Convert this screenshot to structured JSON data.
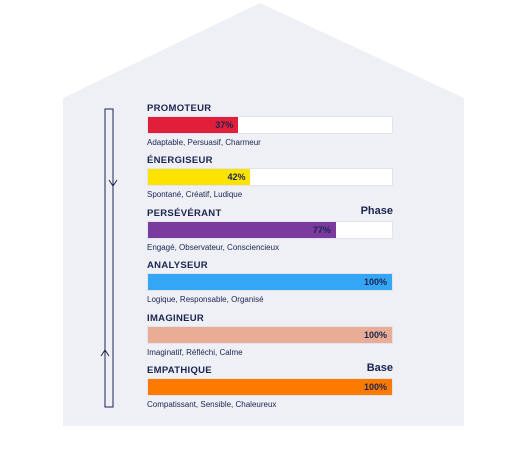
{
  "chart_data": {
    "type": "bar",
    "orientation": "horizontal",
    "xlim": [
      0,
      100
    ],
    "series": [
      {
        "name": "",
        "categories": [
          "PROMOTEUR",
          "ÉNERGISEUR",
          "PERSÉVÉRANT",
          "ANALYSEUR",
          "IMAGINEUR",
          "EMPATHIQUE"
        ],
        "values": [
          37,
          42,
          77,
          100,
          100,
          100
        ]
      }
    ],
    "rows": [
      {
        "name": "PROMOTEUR",
        "value": 37,
        "label": "37%",
        "traits": "Adaptable, Persuasif, Charmeur",
        "color": "#e11f3a",
        "tag": ""
      },
      {
        "name": "ÉNERGISEUR",
        "value": 42,
        "label": "42%",
        "traits": "Spontané, Créatif, Ludique",
        "color": "#fce300",
        "tag": ""
      },
      {
        "name": "PERSÉVÉRANT",
        "value": 77,
        "label": "77%",
        "traits": "Engagé, Observateur, Consciencieux",
        "color": "#7b3a9d",
        "tag": "Phase"
      },
      {
        "name": "ANALYSEUR",
        "value": 100,
        "label": "100%",
        "traits": "Logique, Responsable, Organisé",
        "color": "#34a6f4",
        "tag": ""
      },
      {
        "name": "IMAGINEUR",
        "value": 100,
        "label": "100%",
        "traits": "Imaginatif, Réfléchi, Calme",
        "color": "#e8ad94",
        "tag": ""
      },
      {
        "name": "EMPATHIQUE",
        "value": 100,
        "label": "100%",
        "traits": "Compatissant, Sensible, Chaleureux",
        "color": "#fd7a00",
        "tag": "Base"
      }
    ],
    "colors": {
      "house": "#eef0f5",
      "text": "#1b2450"
    }
  }
}
